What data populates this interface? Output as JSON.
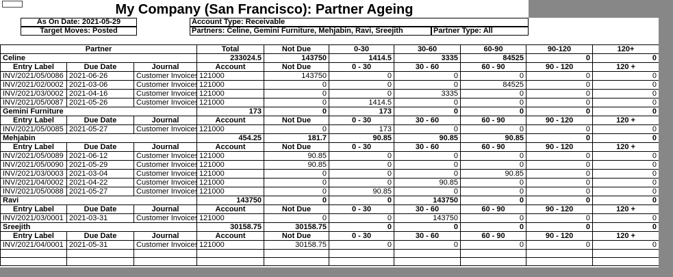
{
  "colors": {
    "outside_grey": "#878787",
    "border": "#000000",
    "sheet": "#ffffff"
  },
  "title": "My Company (San Francisco): Partner Ageing",
  "filters": {
    "as_on_date": "As On Date: 2021-05-29",
    "target_moves": "Target Moves: Posted",
    "account_type": "Account Type: Receivable",
    "partners": "Partners: Celine, Gemini Furniture, Mehjabin, Ravi, Sreejith",
    "partner_type": "Partner Type: All"
  },
  "table": {
    "main_header": [
      "Partner",
      "Total",
      "Not Due",
      "0-30",
      "30-60",
      "60-90",
      "90-120",
      "120+"
    ],
    "group_header": [
      "Entry Label",
      "Due Date",
      "Journal",
      "Account",
      "Not Due",
      "0 - 30",
      "30 - 60",
      "60 - 90",
      "90 - 120",
      "120 +"
    ],
    "groups": [
      {
        "partner": "Celine",
        "totals": [
          "233024.5",
          "143750",
          "1414.5",
          "3335",
          "84525",
          "0",
          "0"
        ],
        "rows": [
          [
            "INV/2021/05/0086",
            "2021-06-26",
            "Customer Invoices",
            "121000",
            "143750",
            "0",
            "0",
            "0",
            "0",
            "0"
          ],
          [
            "INV/2021/02/0002",
            "2021-03-06",
            "Customer Invoices",
            "121000",
            "0",
            "0",
            "0",
            "84525",
            "0",
            "0"
          ],
          [
            "INV/2021/03/0002",
            "2021-04-16",
            "Customer Invoices",
            "121000",
            "0",
            "0",
            "3335",
            "0",
            "0",
            "0"
          ],
          [
            "INV/2021/05/0087",
            "2021-05-26",
            "Customer Invoices",
            "121000",
            "0",
            "1414.5",
            "0",
            "0",
            "0",
            "0"
          ]
        ]
      },
      {
        "partner": "Gemini Furniture",
        "totals": [
          "173",
          "0",
          "173",
          "0",
          "0",
          "0",
          "0"
        ],
        "rows": [
          [
            "INV/2021/05/0085",
            "2021-05-27",
            "Customer Invoices",
            "121000",
            "0",
            "173",
            "0",
            "0",
            "0",
            "0"
          ]
        ]
      },
      {
        "partner": "Mehjabin",
        "totals": [
          "454.25",
          "181.7",
          "90.85",
          "90.85",
          "90.85",
          "0",
          "0"
        ],
        "rows": [
          [
            "INV/2021/05/0089",
            "2021-06-12",
            "Customer Invoices",
            "121000",
            "90.85",
            "0",
            "0",
            "0",
            "0",
            "0"
          ],
          [
            "INV/2021/05/0090",
            "2021-05-29",
            "Customer Invoices",
            "121000",
            "90.85",
            "0",
            "0",
            "0",
            "0",
            "0"
          ],
          [
            "INV/2021/03/0003",
            "2021-03-04",
            "Customer Invoices",
            "121000",
            "0",
            "0",
            "0",
            "90.85",
            "0",
            "0"
          ],
          [
            "INV/2021/04/0002",
            "2021-04-22",
            "Customer Invoices",
            "121000",
            "0",
            "0",
            "90.85",
            "0",
            "0",
            "0"
          ],
          [
            "INV/2021/05/0088",
            "2021-05-27",
            "Customer Invoices",
            "121000",
            "0",
            "90.85",
            "0",
            "0",
            "0",
            "0"
          ]
        ]
      },
      {
        "partner": "Ravi",
        "totals": [
          "143750",
          "0",
          "0",
          "143750",
          "0",
          "0",
          "0"
        ],
        "rows": [
          [
            "INV/2021/03/0001",
            "2021-03-31",
            "Customer Invoices",
            "121000",
            "0",
            "0",
            "143750",
            "0",
            "0",
            "0"
          ]
        ]
      },
      {
        "partner": "Sreejith",
        "totals": [
          "30158.75",
          "30158.75",
          "0",
          "0",
          "0",
          "0",
          "0"
        ],
        "rows": [
          [
            "INV/2021/04/0001",
            "2021-05-31",
            "Customer Invoices",
            "121000",
            "30158.75",
            "0",
            "0",
            "0",
            "0",
            "0"
          ]
        ]
      }
    ],
    "empty_row_count": 2
  }
}
